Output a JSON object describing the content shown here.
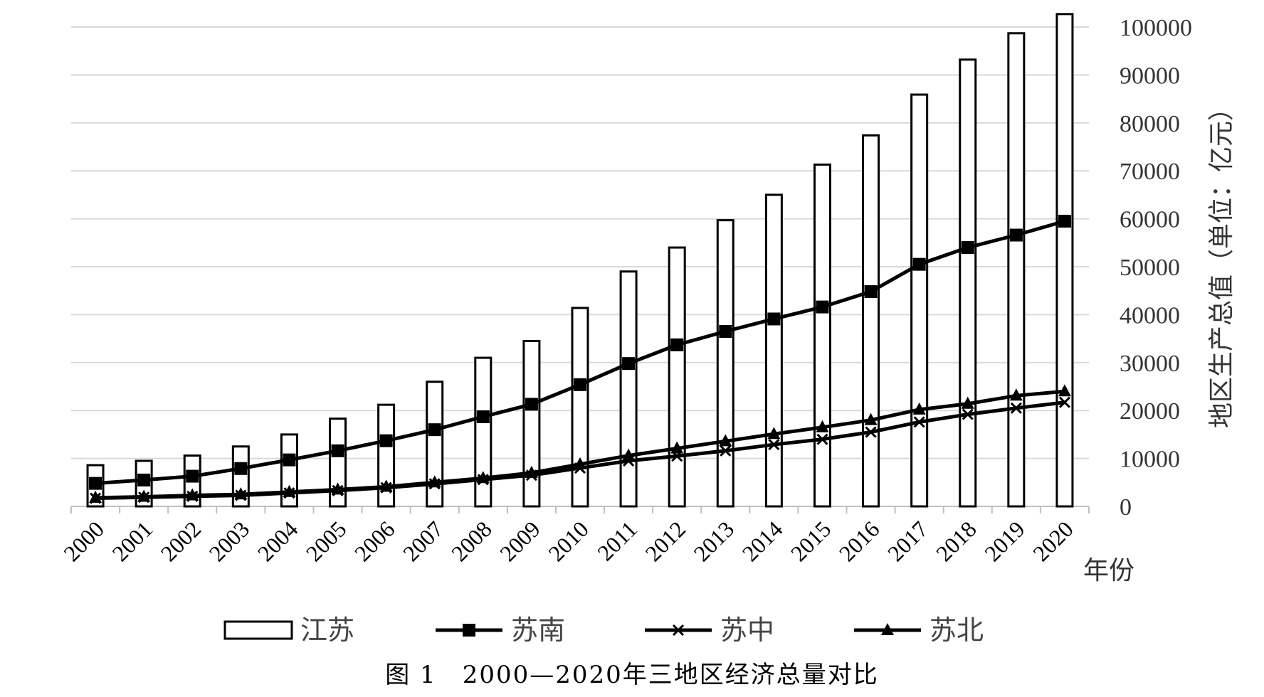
{
  "chart_data": {
    "type": "bar",
    "categories": [
      "2000",
      "2001",
      "2002",
      "2003",
      "2004",
      "2005",
      "2006",
      "2007",
      "2008",
      "2009",
      "2010",
      "2011",
      "2012",
      "2013",
      "2014",
      "2015",
      "2016",
      "2017",
      "2018",
      "2019",
      "2020"
    ],
    "series": [
      {
        "name": "江苏",
        "type": "bar",
        "values": [
          8600,
          9500,
          10600,
          12500,
          15000,
          18300,
          21200,
          26000,
          31000,
          34500,
          41400,
          49000,
          54000,
          59700,
          65000,
          71300,
          77400,
          85900,
          93200,
          98700,
          102700
        ]
      },
      {
        "name": "苏南",
        "type": "line",
        "marker": "square",
        "values": [
          4800,
          5500,
          6300,
          7900,
          9700,
          11600,
          13700,
          16000,
          18700,
          21300,
          25400,
          29800,
          33700,
          36500,
          39100,
          41600,
          44800,
          50500,
          54000,
          56600,
          59500
        ]
      },
      {
        "name": "苏中",
        "type": "line",
        "marker": "x",
        "values": [
          1700,
          1900,
          2100,
          2300,
          2800,
          3300,
          3900,
          4700,
          5600,
          6500,
          8000,
          9500,
          10500,
          11600,
          12900,
          14000,
          15500,
          17600,
          19200,
          20500,
          21700
        ]
      },
      {
        "name": "苏北",
        "type": "line",
        "marker": "triangle",
        "values": [
          1800,
          2000,
          2300,
          2500,
          3000,
          3500,
          4100,
          5000,
          5900,
          7000,
          8800,
          10600,
          12100,
          13600,
          15100,
          16500,
          18000,
          20200,
          21400,
          23100,
          24000
        ]
      }
    ],
    "y_ticks": [
      "0",
      "10000",
      "20000",
      "30000",
      "40000",
      "50000",
      "60000",
      "70000",
      "80000",
      "90000",
      "100000"
    ],
    "ylim": [
      0,
      100000
    ],
    "ylabel": "地区生产总值（单位：亿元）",
    "xlabel": "年份",
    "title": "图 1　2000—2020年三地区经济总量对比",
    "legend_position": "bottom",
    "grid": "horizontal",
    "y_axis_side": "right",
    "colors": {
      "bar_fill": "#ffffff",
      "bar_stroke": "#000000",
      "line": "#000000",
      "grid": "#d9d9d9"
    }
  }
}
